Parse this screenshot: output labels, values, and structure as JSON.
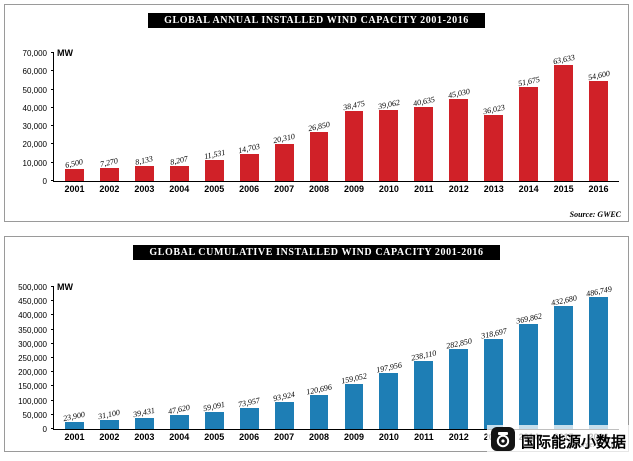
{
  "watermark": {
    "label": "国际能源小数据",
    "color": "#e60012",
    "icon": "camera-logo-icon"
  },
  "chart_data": [
    {
      "type": "bar",
      "title": "GLOBAL ANNUAL INSTALLED WIND CAPACITY 2001-2016",
      "unit_label": "MW",
      "source": "Source: GWEC",
      "bar_color": "#d02128",
      "ylim": [
        0,
        70000
      ],
      "ytick_step": 10000,
      "grid": false,
      "legend": "none",
      "categories": [
        "2001",
        "2002",
        "2003",
        "2004",
        "2005",
        "2006",
        "2007",
        "2008",
        "2009",
        "2010",
        "2011",
        "2012",
        "2013",
        "2014",
        "2015",
        "2016"
      ],
      "values": [
        6500,
        7270,
        8133,
        8207,
        11531,
        14703,
        20310,
        26850,
        38475,
        39062,
        40635,
        45030,
        36023,
        51675,
        63633,
        54600
      ]
    },
    {
      "type": "bar",
      "title": "GLOBAL CUMULATIVE INSTALLED WIND CAPACITY 2001-2016",
      "unit_label": "MW",
      "source": "Source: GWEC",
      "bar_color": "#1e7eb5",
      "ylim": [
        0,
        500000
      ],
      "ytick_step": 50000,
      "grid": false,
      "legend": "none",
      "categories": [
        "2001",
        "2002",
        "2003",
        "2004",
        "2005",
        "2006",
        "2007",
        "2008",
        "2009",
        "2010",
        "2011",
        "2012",
        "2013",
        "2014",
        "2015",
        "2016"
      ],
      "values": [
        23900,
        31100,
        39431,
        47620,
        59091,
        73957,
        93924,
        120696,
        159052,
        197956,
        238110,
        282850,
        318697,
        369862,
        432680,
        486749
      ]
    }
  ]
}
